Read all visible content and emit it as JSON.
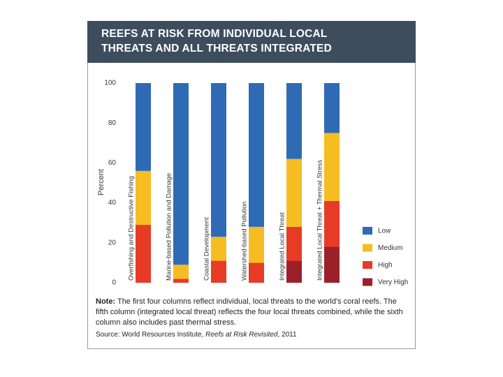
{
  "chart_data": {
    "type": "stacked-bar",
    "title": "REEFS AT RISK FROM INDIVIDUAL LOCAL THREATS AND ALL THREATS INTEGRATED",
    "y_label": "Percent",
    "categories": [
      "Overfishing and Destructive Fishing",
      "Marine-based Pollution and Damage",
      "Coastal Development",
      "Watershed-based Pollution",
      "Integrated Local Threat",
      "Integrated Local Threat + Thermal Stress"
    ],
    "series": [
      {
        "name": "Low",
        "color": "#2f6bb5",
        "values": [
          44,
          91,
          77,
          72,
          38,
          25
        ]
      },
      {
        "name": "Medium",
        "color": "#f5bd22",
        "values": [
          27,
          7,
          12,
          18,
          34,
          34
        ]
      },
      {
        "name": "High",
        "color": "#e83b26",
        "values": [
          29,
          2,
          11,
          10,
          17,
          23
        ]
      },
      {
        "name": "Very High",
        "color": "#9c2029",
        "values": [
          0,
          0,
          0,
          0,
          11,
          18
        ]
      }
    ],
    "ylim": [
      0,
      100
    ],
    "yticks": [
      0,
      20,
      40,
      60,
      80,
      100
    ],
    "grid": false,
    "legend": "right",
    "note_label": "Note:",
    "note": "The first four columns reflect individual, local threats to the world's coral reefs. The fifth column (integrated local threat) reflects the four local threats combined, while the sixth column also includes past thermal stress.",
    "source_prefix": "Source: World Resources Institute, ",
    "source_title": "Reefs at Risk Revisited",
    "source_suffix": ", 2011"
  }
}
